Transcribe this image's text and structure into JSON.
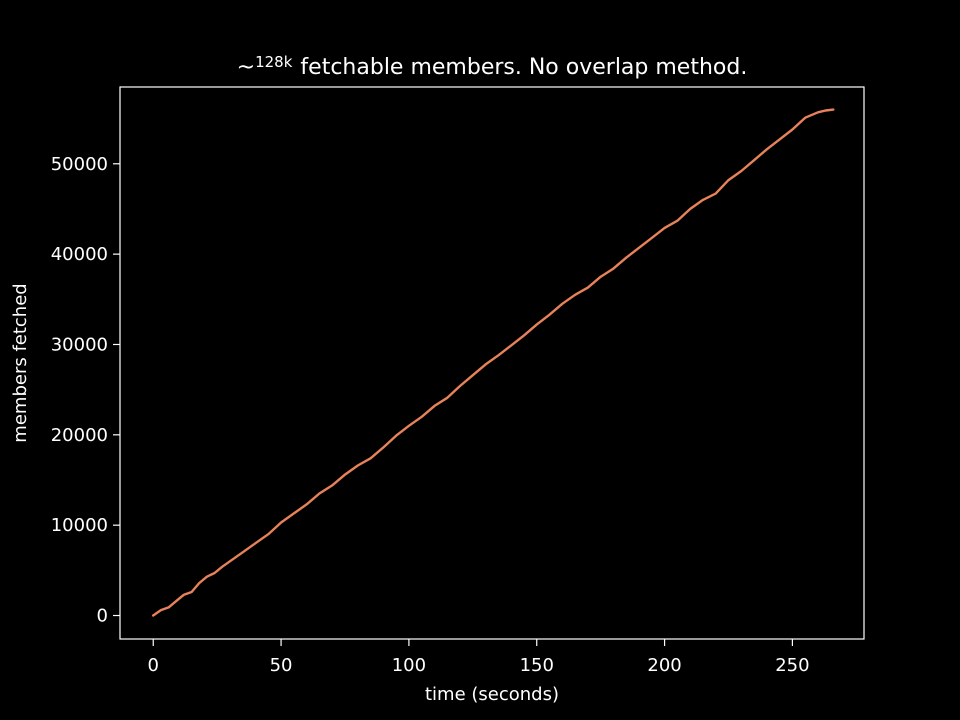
{
  "background_color": "#000000",
  "foreground_color": "#ffffff",
  "chart_data": {
    "type": "line",
    "title": "fetchable members. No overlap method.",
    "title_prefix": "~",
    "title_superscript": "128k",
    "xlabel": "time (seconds)",
    "ylabel": "members fetched",
    "xlim": [
      -13,
      278
    ],
    "ylim": [
      -2600,
      58500
    ],
    "xticks": [
      0,
      50,
      100,
      150,
      200,
      250
    ],
    "xtick_labels": [
      "0",
      "50",
      "100",
      "150",
      "200",
      "250"
    ],
    "yticks": [
      0,
      10000,
      20000,
      30000,
      40000,
      50000
    ],
    "ytick_labels": [
      "0",
      "10000",
      "20000",
      "30000",
      "40000",
      "50000"
    ],
    "grid": false,
    "legend": "none",
    "series": [
      {
        "color": "#e8825a",
        "x": [
          0,
          3,
          6,
          9,
          12,
          15,
          18,
          21,
          24,
          27,
          30,
          35,
          40,
          45,
          50,
          55,
          60,
          65,
          70,
          75,
          80,
          85,
          90,
          95,
          100,
          105,
          110,
          115,
          120,
          125,
          130,
          135,
          140,
          145,
          150,
          155,
          160,
          165,
          170,
          175,
          180,
          185,
          190,
          195,
          200,
          205,
          210,
          215,
          220,
          225,
          230,
          235,
          240,
          245,
          250,
          255,
          260,
          263,
          266
        ],
        "y": [
          0,
          600,
          900,
          1600,
          2300,
          2600,
          3600,
          4300,
          4700,
          5400,
          6000,
          7000,
          8000,
          9000,
          10300,
          11300,
          12300,
          13500,
          14400,
          15600,
          16600,
          17400,
          18600,
          19900,
          21000,
          22000,
          23200,
          24100,
          25400,
          26600,
          27800,
          28800,
          29900,
          31000,
          32200,
          33300,
          34500,
          35500,
          36300,
          37500,
          38400,
          39600,
          40700,
          41800,
          42900,
          43700,
          45000,
          46000,
          46700,
          48200,
          49200,
          50400,
          51600,
          52700,
          53800,
          55100,
          55700,
          55900,
          56000
        ]
      }
    ]
  }
}
